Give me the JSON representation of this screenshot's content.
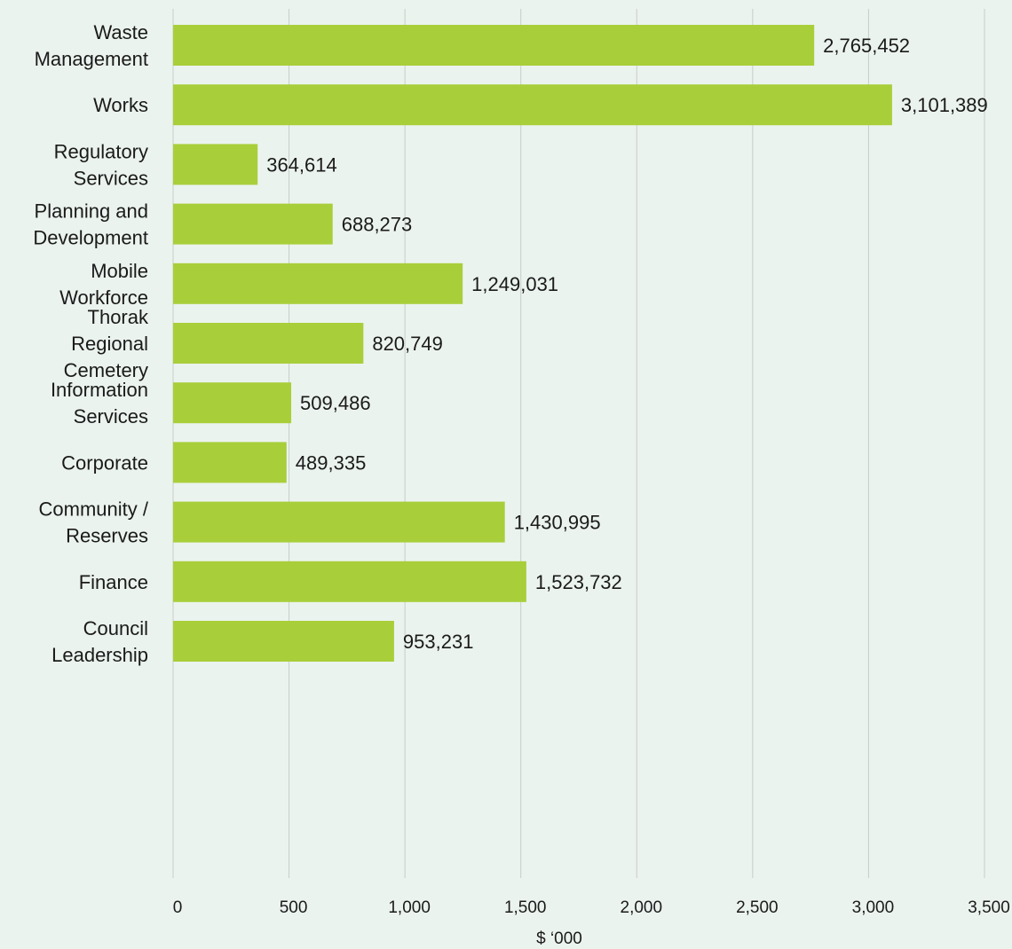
{
  "chart_data": {
    "type": "bar",
    "orientation": "horizontal",
    "categories": [
      "Waste Management",
      "Works",
      "Regulatory Services",
      "Planning and Development",
      "Mobile Workforce",
      "Thorak Regional Cemetery",
      "Information Services",
      "Corporate",
      "Community / Reserves",
      "Finance",
      "Council Leadership"
    ],
    "category_label_lines": [
      [
        "Waste",
        "Management"
      ],
      [
        "Works"
      ],
      [
        "Regulatory",
        "Services"
      ],
      [
        "Planning and",
        "Development"
      ],
      [
        "Mobile",
        "Workforce"
      ],
      [
        "Thorak",
        "Regional",
        "Cemetery"
      ],
      [
        "Information",
        "Services"
      ],
      [
        "Corporate"
      ],
      [
        "Community /",
        "Reserves"
      ],
      [
        "Finance"
      ],
      [
        "Council",
        "Leadership"
      ]
    ],
    "values": [
      2765.452,
      3101.389,
      364.614,
      688.273,
      1249.031,
      820.749,
      509.486,
      489.335,
      1430.995,
      1523.732,
      953.231
    ],
    "value_labels": [
      "2,765,452",
      "3,101,389",
      "364,614",
      "688,273",
      "1,249,031",
      "820,749",
      "509,486",
      "489,335",
      "1,430,995",
      "1,523,732",
      "953,231"
    ],
    "xlim": [
      0,
      3500
    ],
    "x_ticks": [
      0,
      500,
      1000,
      1500,
      2000,
      2500,
      3000,
      3500
    ],
    "x_tick_labels": [
      "0",
      "500",
      "1,000",
      "1,500",
      "2,000",
      "2,500",
      "3,000",
      "3,500"
    ],
    "xlabel": "$ ‘000",
    "ylabel": "",
    "title": "",
    "grid": "vertical",
    "bar_color": "#a8cf3a",
    "grid_color": "#c8cdc9",
    "background": "#ebf3ee"
  }
}
